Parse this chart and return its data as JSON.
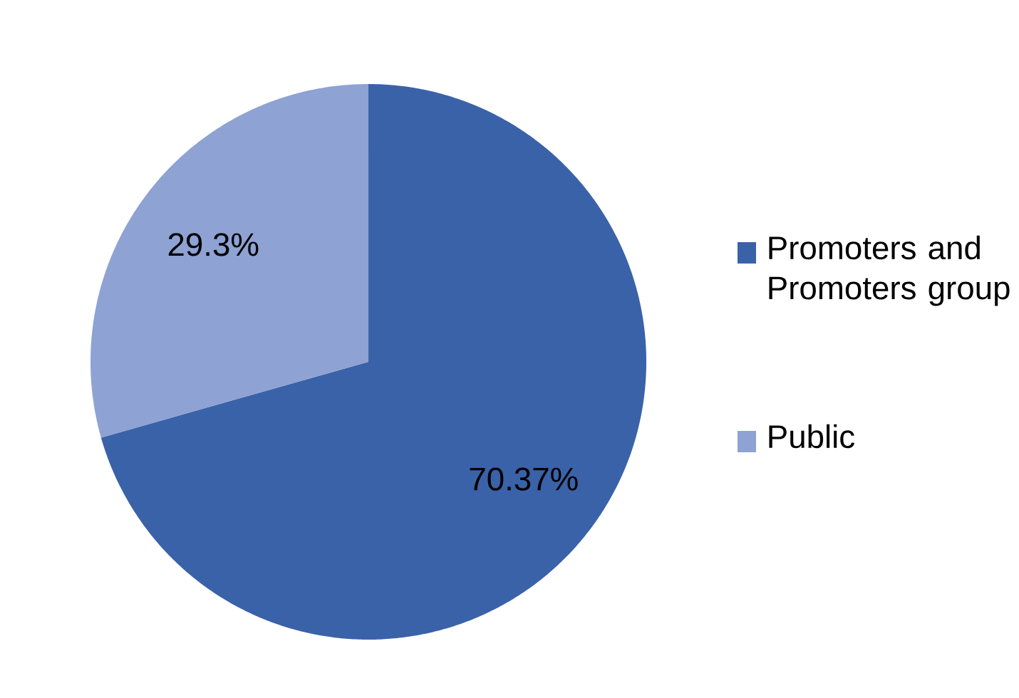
{
  "chart_data": {
    "type": "pie",
    "categories": [
      "Promoters and Promoters group",
      "Public"
    ],
    "values": [
      70.37,
      29.3
    ],
    "colors": [
      "#3a62a8",
      "#8ea2d3"
    ],
    "value_labels": [
      "70.37%",
      "29.3%"
    ],
    "legend": "right"
  }
}
